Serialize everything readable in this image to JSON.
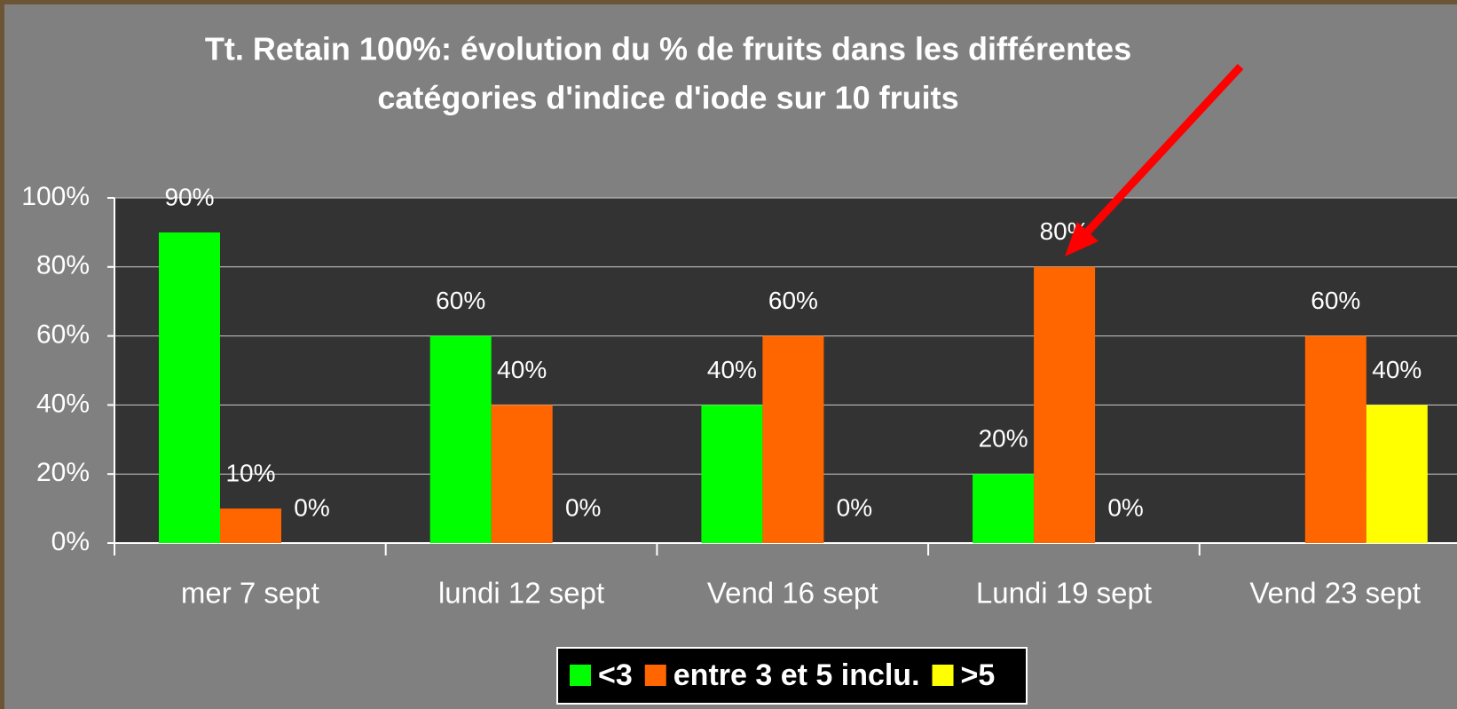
{
  "chart_data": {
    "type": "bar",
    "title": "Tt. Retain 100%: évolution du % de fruits dans les différentes",
    "subtitle": "catégories d'indice d'iode sur 10 fruits",
    "categories": [
      "mer 7 sept",
      "lundi 12 sept",
      "Vend 16 sept",
      "Lundi 19 sept",
      "Vend 23 sept"
    ],
    "series": [
      {
        "name": "<3",
        "color": "#00ff00",
        "values": [
          90,
          60,
          40,
          20,
          null
        ],
        "value_labels": [
          "90%",
          "60%",
          "40%",
          "20%",
          null
        ]
      },
      {
        "name": "entre 3 et 5 inclu.",
        "color": "#ff6600",
        "values": [
          10,
          40,
          60,
          80,
          60
        ],
        "value_labels": [
          "10%",
          "40%",
          "60%",
          "80%",
          "60%"
        ]
      },
      {
        "name": ">5",
        "color": "#ffff00",
        "values": [
          0,
          0,
          0,
          0,
          40
        ],
        "value_labels": [
          "0%",
          "0%",
          "0%",
          "0%",
          "40%"
        ]
      }
    ],
    "ylim": [
      0,
      100
    ],
    "yticks": [
      {
        "value": 0,
        "label": "0%"
      },
      {
        "value": 20,
        "label": "20%"
      },
      {
        "value": 40,
        "label": "40%"
      },
      {
        "value": 60,
        "label": "60%"
      },
      {
        "value": 80,
        "label": "80%"
      },
      {
        "value": 100,
        "label": "100%"
      }
    ],
    "grid": true,
    "legend": "bottom"
  }
}
